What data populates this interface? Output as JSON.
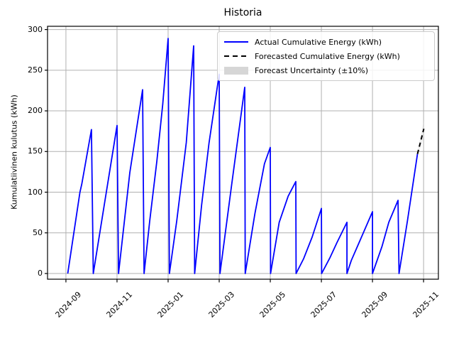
{
  "figure": {
    "title": "Historia",
    "ylabel": "Kumulatiivinen kulutus (kWh)"
  },
  "legend": {
    "items": [
      {
        "label": "Actual Cumulative Energy (kWh)",
        "swatch": "solid-line",
        "color": "#0000ff"
      },
      {
        "label": "Forecasted Cumulative Energy (kWh)",
        "swatch": "dashed-line",
        "color": "#000000"
      },
      {
        "label": "Forecast Uncertainty (±10%)",
        "swatch": "patch",
        "color": "#d6d6d6"
      }
    ]
  },
  "chart_data": {
    "type": "line",
    "title": "Historia",
    "xlabel": "",
    "ylabel": "Kumulatiivinen kulutus (kWh)",
    "grid": true,
    "legend_position": "upper right",
    "y_ticks": [
      0,
      50,
      100,
      150,
      200,
      250,
      300
    ],
    "x_tick_labels": [
      "2024-09",
      "2024-11",
      "2025-01",
      "2025-03",
      "2025-05",
      "2025-07",
      "2025-09",
      "2025-11"
    ],
    "x_tick_month_step": 2,
    "month0": "2024-09",
    "ylim": [
      -7,
      304
    ],
    "xlim_month_offsets": [
      -0.72,
      14.58
    ],
    "colors": {
      "actual": "#0000ff",
      "forecast": "#000000",
      "band": "#d3d3d3",
      "grid": "#b0b0b0",
      "spine": "#000000"
    },
    "series": [
      {
        "name": "Actual Cumulative Energy (kWh)",
        "style": "solid",
        "note": "monthly sawtooth; each tooth rises from 0 at month start to peak at month end, then resets",
        "teeth": [
          {
            "month": "2024-09",
            "peak": 177,
            "points": [
              [
                0.07,
                0
              ],
              [
                0.55,
                100
              ],
              [
                0.62,
                110
              ],
              [
                1,
                177
              ]
            ]
          },
          {
            "month": "2024-10",
            "peak": 182,
            "points": [
              [
                0.07,
                0
              ],
              [
                0.51,
                86
              ],
              [
                1,
                182
              ]
            ]
          },
          {
            "month": "2024-11",
            "peak": 226,
            "points": [
              [
                0.06,
                0
              ],
              [
                0.5,
                124
              ],
              [
                1,
                226
              ]
            ]
          },
          {
            "month": "2024-12",
            "peak": 289,
            "points": [
              [
                0.06,
                0
              ],
              [
                0.28,
                65
              ],
              [
                0.56,
                138
              ],
              [
                0.79,
                208
              ],
              [
                1,
                289
              ]
            ]
          },
          {
            "month": "2025-01",
            "peak": 280,
            "points": [
              [
                0.05,
                0
              ],
              [
                0.34,
                65
              ],
              [
                0.71,
                161
              ],
              [
                1,
                280
              ]
            ]
          },
          {
            "month": "2025-02",
            "peak": 245,
            "points": [
              [
                0.04,
                0
              ],
              [
                0.31,
                84
              ],
              [
                0.6,
                160
              ],
              [
                1,
                245
              ]
            ]
          },
          {
            "month": "2025-03",
            "peak": 229,
            "points": [
              [
                0.03,
                0
              ],
              [
                0.5,
                112
              ],
              [
                1,
                229
              ]
            ]
          },
          {
            "month": "2025-04",
            "peak": 155,
            "points": [
              [
                0.02,
                0
              ],
              [
                0.4,
                74
              ],
              [
                0.77,
                135
              ],
              [
                1,
                155
              ]
            ]
          },
          {
            "month": "2025-05",
            "peak": 113,
            "points": [
              [
                0.01,
                0
              ],
              [
                0.35,
                63
              ],
              [
                0.7,
                95
              ],
              [
                1,
                113
              ]
            ]
          },
          {
            "month": "2025-06",
            "peak": 80,
            "points": [
              [
                0.01,
                0
              ],
              [
                0.3,
                18
              ],
              [
                0.64,
                45
              ],
              [
                1,
                80
              ]
            ]
          },
          {
            "month": "2025-07",
            "peak": 63,
            "points": [
              [
                0.01,
                0
              ],
              [
                0.33,
                19
              ],
              [
                0.61,
                38
              ],
              [
                1,
                63
              ]
            ]
          },
          {
            "month": "2025-08",
            "peak": 76,
            "points": [
              [
                0.0,
                0
              ],
              [
                0.17,
                16
              ],
              [
                0.53,
                42
              ],
              [
                1,
                76
              ]
            ]
          },
          {
            "month": "2025-09",
            "peak": 90,
            "points": [
              [
                0.0,
                0
              ],
              [
                0.37,
                33
              ],
              [
                0.64,
                63
              ],
              [
                1,
                90
              ]
            ]
          },
          {
            "month": "2025-10",
            "peak": 147,
            "open_end": true,
            "points": [
              [
                0.04,
                0
              ],
              [
                0.37,
                65
              ],
              [
                0.76,
                147
              ]
            ]
          }
        ]
      },
      {
        "name": "Forecasted Cumulative Energy (kWh)",
        "style": "dashed",
        "segment": {
          "month": "2025-10",
          "points": [
            [
              0.76,
              147
            ],
            [
              1.01,
              178
            ]
          ]
        }
      }
    ],
    "uncertainty_band": {
      "label": "Forecast Uncertainty (±10%)",
      "month": "2025-10",
      "x": [
        0.76,
        1.01
      ],
      "lower": [
        143,
        168
      ],
      "upper": [
        151,
        188
      ]
    }
  }
}
